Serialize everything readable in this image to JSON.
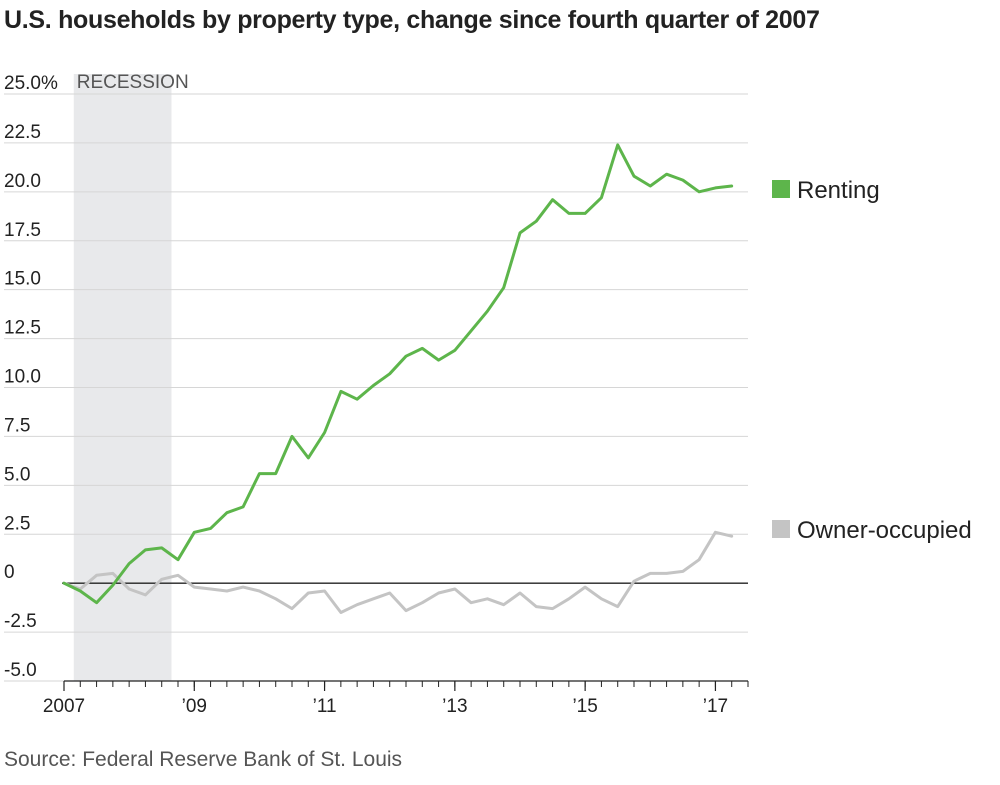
{
  "title": "U.S. households by property type, change since fourth quarter of 2007",
  "source": "Source: Federal Reserve Bank of St. Louis",
  "chart_data": {
    "type": "line",
    "title": "U.S. households by property type, change since fourth quarter of 2007",
    "xlabel": "",
    "ylabel": "",
    "ylim": [
      -5.0,
      25.0
    ],
    "xlim": [
      2007.75,
      2018.25
    ],
    "yticks": [
      {
        "value": 25.0,
        "label": "25.0%"
      },
      {
        "value": 22.5,
        "label": "22.5"
      },
      {
        "value": 20.0,
        "label": "20.0"
      },
      {
        "value": 17.5,
        "label": "17.5"
      },
      {
        "value": 15.0,
        "label": "15.0"
      },
      {
        "value": 12.5,
        "label": "12.5"
      },
      {
        "value": 10.0,
        "label": "10.0"
      },
      {
        "value": 7.5,
        "label": "7.5"
      },
      {
        "value": 5.0,
        "label": "5.0"
      },
      {
        "value": 2.5,
        "label": "2.5"
      },
      {
        "value": 0,
        "label": "0"
      },
      {
        "value": -2.5,
        "label": "-2.5"
      },
      {
        "value": -5.0,
        "label": "-5.0"
      }
    ],
    "xticks": [
      {
        "value": 2007.75,
        "label": "2007"
      },
      {
        "value": 2009.75,
        "label": "’09"
      },
      {
        "value": 2011.75,
        "label": "’11"
      },
      {
        "value": 2013.75,
        "label": "’13"
      },
      {
        "value": 2015.75,
        "label": "’15"
      },
      {
        "value": 2017.75,
        "label": "’17"
      }
    ],
    "grid": true,
    "legend_position": "right",
    "recession": {
      "start": 2007.9,
      "end": 2009.4,
      "label": "RECESSION",
      "color": "#e8e9eb"
    },
    "x": [
      2007.75,
      2008.0,
      2008.25,
      2008.5,
      2008.75,
      2009.0,
      2009.25,
      2009.5,
      2009.75,
      2010.0,
      2010.25,
      2010.5,
      2010.75,
      2011.0,
      2011.25,
      2011.5,
      2011.75,
      2012.0,
      2012.25,
      2012.5,
      2012.75,
      2013.0,
      2013.25,
      2013.5,
      2013.75,
      2014.0,
      2014.25,
      2014.5,
      2014.75,
      2015.0,
      2015.25,
      2015.5,
      2015.75,
      2016.0,
      2016.25,
      2016.5,
      2016.75,
      2017.0,
      2017.25,
      2017.5,
      2017.75,
      2018.0
    ],
    "series": [
      {
        "name": "Renting",
        "color": "#5db54b",
        "values": [
          0.0,
          -0.4,
          -1.0,
          -0.1,
          1.0,
          1.7,
          1.8,
          1.2,
          2.6,
          2.8,
          3.6,
          3.9,
          5.6,
          5.6,
          7.5,
          6.4,
          7.7,
          9.8,
          9.4,
          10.1,
          10.7,
          11.6,
          12.0,
          11.4,
          11.9,
          12.9,
          13.9,
          15.1,
          17.9,
          18.5,
          19.6,
          18.9,
          18.9,
          19.7,
          22.4,
          20.8,
          20.3,
          20.9,
          20.6,
          20.0,
          20.2,
          20.3
        ]
      },
      {
        "name": "Owner-occupied",
        "color": "#c4c4c4",
        "values": [
          0.0,
          -0.3,
          0.4,
          0.5,
          -0.3,
          -0.6,
          0.2,
          0.4,
          -0.2,
          -0.3,
          -0.4,
          -0.2,
          -0.4,
          -0.8,
          -1.3,
          -0.5,
          -0.4,
          -1.5,
          -1.1,
          -0.8,
          -0.5,
          -1.4,
          -1.0,
          -0.5,
          -0.3,
          -1.0,
          -0.8,
          -1.1,
          -0.5,
          -1.2,
          -1.3,
          -0.8,
          -0.2,
          -0.8,
          -1.2,
          0.1,
          0.5,
          0.5,
          0.6,
          1.2,
          2.6,
          2.4
        ]
      }
    ]
  }
}
